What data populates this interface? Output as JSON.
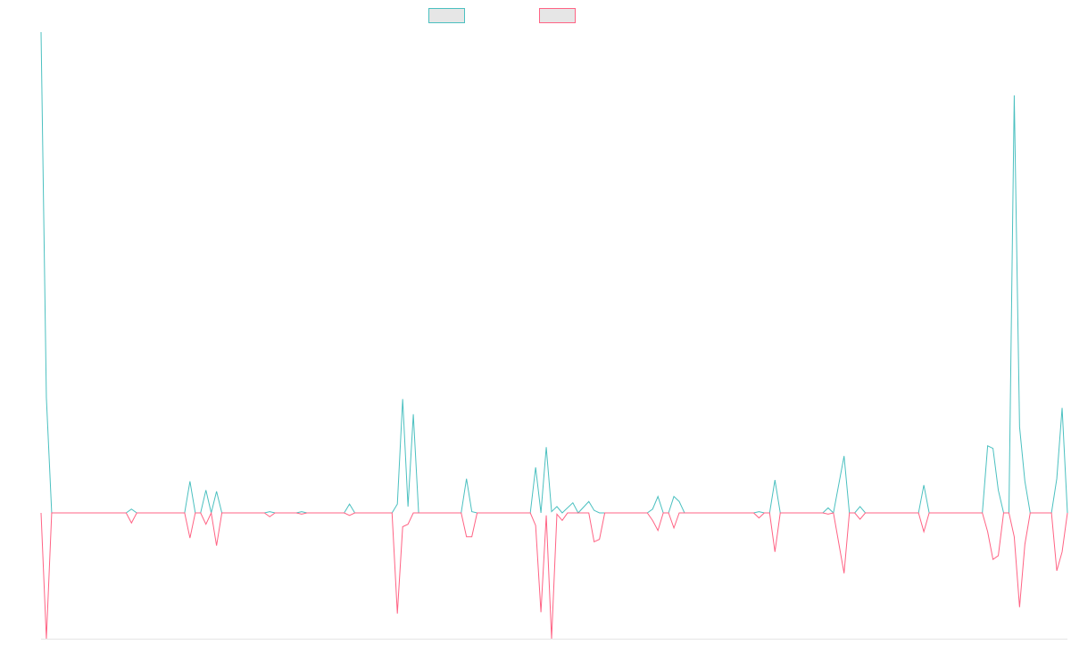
{
  "chart_data": {
    "type": "line",
    "title": "",
    "xlabel": "",
    "ylabel": "",
    "ylim": [
      -100,
      380
    ],
    "grid": false,
    "legend_position": "top-center",
    "series": [
      {
        "name": "",
        "color": "#4bc0c0",
        "fill": "#e6e6e6",
        "values": [
          380,
          91,
          0,
          0,
          0,
          0,
          0,
          0,
          0,
          0,
          0,
          0,
          0,
          0,
          0,
          0,
          0,
          3,
          0,
          0,
          0,
          0,
          0,
          0,
          0,
          0,
          0,
          0,
          0,
          0,
          25,
          0,
          0,
          18,
          0,
          0,
          17,
          0,
          0,
          0,
          0,
          0,
          0,
          0,
          0,
          0,
          0,
          0,
          0,
          0,
          0,
          0,
          0,
          0,
          0,
          0,
          0,
          0,
          0,
          0,
          0,
          0,
          0,
          0,
          0,
          0,
          0,
          0,
          0,
          0,
          0,
          0,
          0,
          0,
          0,
          0,
          0,
          0,
          0,
          0,
          0,
          0,
          0,
          0,
          0,
          0,
          0,
          0,
          0,
          0,
          0,
          0,
          0,
          0,
          0,
          0,
          0,
          0,
          0,
          0,
          0,
          0,
          0,
          0,
          0,
          0,
          0,
          8,
          0,
          0,
          0,
          0,
          0,
          0,
          0,
          0,
          8,
          0,
          0,
          0,
          0,
          0,
          0,
          0,
          0,
          0,
          0,
          0,
          0,
          0,
          0,
          0,
          0,
          0,
          0,
          0,
          0,
          0,
          0,
          0,
          0,
          0,
          0,
          0,
          0,
          0,
          0,
          0,
          0,
          0,
          0,
          0,
          0,
          0,
          0,
          0,
          0,
          0,
          0,
          0,
          0,
          0,
          0,
          0,
          0,
          0,
          0,
          0,
          0,
          0,
          0,
          0,
          0,
          0,
          0,
          0,
          0,
          0,
          0,
          0,
          0,
          0,
          0,
          0,
          0,
          0,
          0,
          0,
          0,
          0,
          0,
          0,
          0,
          0,
          0,
          0,
          0,
          0,
          0,
          0,
          0,
          0,
          0,
          0,
          0,
          0,
          0,
          0,
          0,
          0,
          0,
          0,
          0,
          0,
          0,
          0,
          0,
          0,
          0,
          0,
          0,
          0,
          0,
          0,
          0,
          0,
          0,
          0,
          0,
          0,
          0,
          0,
          0,
          0,
          0,
          0,
          0,
          0,
          0,
          0,
          0,
          0,
          0,
          0,
          0,
          0,
          0,
          0,
          0,
          0,
          0,
          0,
          0,
          0,
          0,
          0,
          0,
          0,
          0,
          0,
          0,
          0,
          0,
          0,
          0,
          0,
          0,
          0,
          0,
          0,
          0,
          0,
          0,
          0,
          0,
          0,
          0,
          0,
          0,
          0,
          0,
          0,
          0
        ]
      },
      {
        "name": "",
        "color": "#ff6384",
        "fill": "#e6e6e6",
        "values": []
      }
    ]
  }
}
